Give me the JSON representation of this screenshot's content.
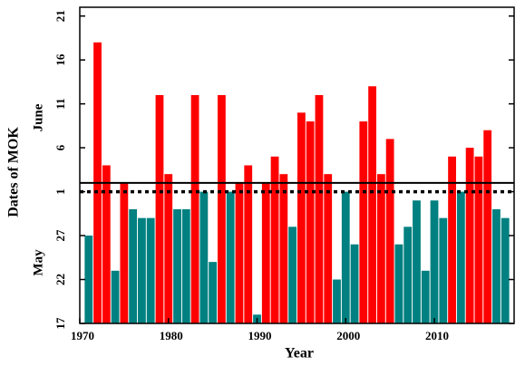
{
  "chart_data": {
    "type": "bar",
    "x_label": "Year",
    "y_label": "Dates of MOK",
    "annotations": [
      "May",
      "June"
    ],
    "x": [
      1971,
      1972,
      1973,
      1974,
      1975,
      1976,
      1977,
      1978,
      1979,
      1980,
      1981,
      1982,
      1983,
      1984,
      1985,
      1986,
      1987,
      1988,
      1989,
      1990,
      1991,
      1992,
      1993,
      1994,
      1995,
      1996,
      1997,
      1998,
      1999,
      2000,
      2001,
      2002,
      2003,
      2004,
      2005,
      2006,
      2007,
      2008,
      2009,
      2010,
      2011,
      2012,
      2013,
      2014,
      2015,
      2016,
      2017,
      2018
    ],
    "values": [
      27,
      49,
      35,
      23,
      33,
      30,
      29,
      29,
      43,
      34,
      30,
      30,
      43,
      32,
      24,
      43,
      32,
      33,
      35,
      18,
      33,
      36,
      34,
      28,
      41,
      40,
      43,
      34,
      22,
      32,
      26,
      40,
      44,
      34,
      38,
      26,
      28,
      31,
      23,
      31,
      29,
      36,
      32,
      37,
      36,
      39,
      30,
      29
    ],
    "colors": [
      "#008080",
      "#ff0000",
      "#ff0000",
      "#008080",
      "#ff0000",
      "#008080",
      "#008080",
      "#008080",
      "#ff0000",
      "#ff0000",
      "#008080",
      "#008080",
      "#ff0000",
      "#008080",
      "#008080",
      "#ff0000",
      "#008080",
      "#ff0000",
      "#ff0000",
      "#008080",
      "#ff0000",
      "#ff0000",
      "#ff0000",
      "#008080",
      "#ff0000",
      "#ff0000",
      "#ff0000",
      "#ff0000",
      "#008080",
      "#008080",
      "#008080",
      "#ff0000",
      "#ff0000",
      "#ff0000",
      "#ff0000",
      "#008080",
      "#008080",
      "#008080",
      "#008080",
      "#008080",
      "#008080",
      "#ff0000",
      "#008080",
      "#ff0000",
      "#ff0000",
      "#ff0000",
      "#008080",
      "#008080"
    ],
    "xlim": [
      1970,
      2019
    ],
    "xticks": [
      1970,
      1980,
      1990,
      2000,
      2010
    ],
    "ylim": [
      17,
      53
    ],
    "yticks": [
      17,
      22,
      27,
      {
        "value": 32,
        "label": "1"
      },
      {
        "value": 37,
        "label": "6"
      },
      {
        "value": 42,
        "label": "11"
      },
      {
        "value": 47,
        "label": "16"
      },
      {
        "value": 52,
        "label": "21"
      }
    ],
    "reference_lines": [
      {
        "value": 33,
        "style": "solid"
      },
      {
        "value": 32,
        "style": "dotted"
      }
    ]
  }
}
